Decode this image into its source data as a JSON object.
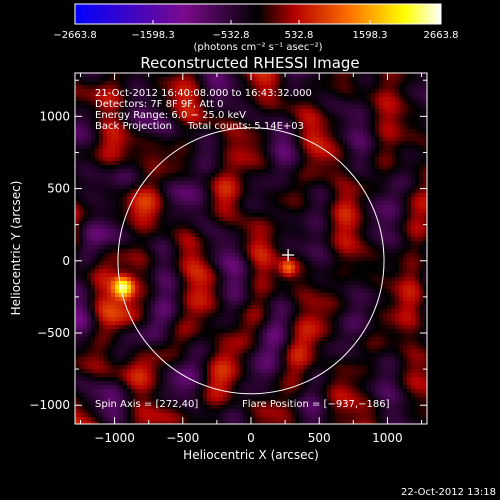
{
  "chart_data": {
    "type": "heatmap",
    "title": "Reconstructed RHESSI Image",
    "xlabel": "Heliocentric X (arcsec)",
    "ylabel": "Heliocentric Y (arcsec)",
    "xlim": [
      -1290,
      1290
    ],
    "ylim": [
      -1130,
      1300
    ],
    "xticks": [
      -1000,
      -500,
      0,
      500,
      1000
    ],
    "yticks": [
      -1000,
      -500,
      0,
      500,
      1000
    ],
    "xtick_labels": [
      "−1000",
      "−500",
      "0",
      "500",
      "1000"
    ],
    "ytick_labels": [
      "−1000",
      "−500",
      "0",
      "500",
      "1000"
    ],
    "colorbar": {
      "min": -2663.8,
      "max": 2663.8,
      "tick_labels": [
        "−2663.8",
        "−1598.3",
        "−532.8",
        "532.8",
        "1598.3",
        "2663.8"
      ],
      "unit_label": "(photons cm⁻² s⁻¹ asec⁻²)",
      "colors": [
        "#0000ff",
        "#7a0a8c",
        "#000000",
        "#b40000",
        "#ff7000",
        "#ffff00",
        "#ffffff"
      ]
    },
    "info_lines": [
      "21-Oct-2012 16:40:08.000 to 16:43:32.000",
      "Detectors: 7F 8F 9F, Att 0",
      "Energy Range: 6.0 − 25.0 keV",
      "Back Projection     Total counts: 5.14E+03"
    ],
    "spin_axis": "Spin Axis = [272,40]",
    "flare_position": "Flare Position = [−937,−186]",
    "solar_limb": {
      "center": [
        0,
        0
      ],
      "radius_arcsec": 975
    },
    "marker": {
      "x": 272,
      "y": 40
    },
    "bright_source": {
      "x": -937,
      "y": -186,
      "value": 2663.8
    }
  },
  "footer": {
    "timestamp": "22-Oct-2012 13:18"
  }
}
